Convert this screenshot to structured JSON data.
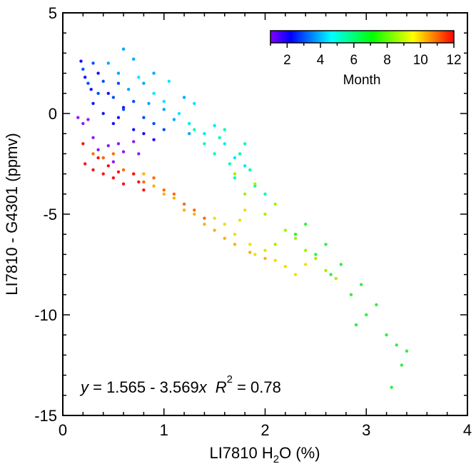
{
  "chart_data": {
    "type": "scatter",
    "xlabel": "LI7810 H₂O (%)",
    "xlabel_parts": {
      "main": "LI7810 H",
      "sub": "2",
      "rest": "O (%)"
    },
    "ylabel": "LI7810 - G4301 (ppmv)",
    "xlim": [
      0,
      4
    ],
    "ylim": [
      -15,
      5
    ],
    "x_ticks": [
      "0",
      "1",
      "2",
      "3",
      "4"
    ],
    "y_ticks": [
      "5",
      "0",
      "-5",
      "-10",
      "-15"
    ],
    "grid": false,
    "annotation": {
      "y": "y",
      "eq": " = 1.565 - 3.569",
      "x": "x",
      "r": "R",
      "sup": "2",
      "rval": " = 0.78"
    },
    "colorbar": {
      "label": "Month",
      "range": [
        1,
        12
      ],
      "tick_labels": [
        "2",
        "4",
        "6",
        "8",
        "10",
        "12"
      ],
      "placement": "top-right",
      "colormap": [
        "#8000ff",
        "#0000ff",
        "#0080ff",
        "#00ffff",
        "#00ff80",
        "#00ff00",
        "#80ff00",
        "#ffff00",
        "#ff8000",
        "#ff0000"
      ]
    },
    "series": [
      {
        "month": 1,
        "color": "#8a1cff",
        "points": [
          [
            0.15,
            -0.2
          ],
          [
            0.2,
            -0.5
          ],
          [
            0.25,
            -0.3
          ],
          [
            0.3,
            -1.2
          ],
          [
            0.35,
            -1.8
          ],
          [
            0.4,
            -2.2
          ],
          [
            0.45,
            -1.6
          ],
          [
            0.5,
            -2.4
          ],
          [
            0.55,
            -1.5
          ],
          [
            0.6,
            -1.9
          ],
          [
            0.7,
            -1.4
          ],
          [
            0.75,
            -2.0
          ]
        ]
      },
      {
        "month": 2,
        "color": "#1a10ff",
        "points": [
          [
            0.18,
            2.6
          ],
          [
            0.22,
            1.8
          ],
          [
            0.28,
            1.2
          ],
          [
            0.3,
            0.5
          ],
          [
            0.35,
            2.0
          ],
          [
            0.4,
            0.0
          ],
          [
            0.45,
            1.0
          ],
          [
            0.5,
            -0.5
          ],
          [
            0.6,
            0.3
          ],
          [
            0.7,
            -0.8
          ],
          [
            0.8,
            -1.0
          ],
          [
            0.9,
            -1.3
          ],
          [
            0.55,
            -0.2
          ]
        ]
      },
      {
        "month": 3,
        "color": "#0050ff",
        "points": [
          [
            0.2,
            2.2
          ],
          [
            0.25,
            1.5
          ],
          [
            0.3,
            2.5
          ],
          [
            0.35,
            1.0
          ],
          [
            0.4,
            1.6
          ],
          [
            0.5,
            0.8
          ],
          [
            0.55,
            1.5
          ],
          [
            0.6,
            0.2
          ],
          [
            0.7,
            0.6
          ],
          [
            0.8,
            -0.2
          ],
          [
            0.9,
            -0.5
          ],
          [
            1.0,
            -0.8
          ]
        ]
      },
      {
        "month": 4,
        "color": "#00a8ff",
        "points": [
          [
            0.45,
            2.5
          ],
          [
            0.55,
            2.0
          ],
          [
            0.6,
            3.2
          ],
          [
            0.65,
            1.2
          ],
          [
            0.7,
            2.7
          ],
          [
            0.8,
            1.5
          ],
          [
            0.85,
            0.5
          ],
          [
            0.9,
            2.0
          ],
          [
            1.0,
            0.2
          ],
          [
            1.1,
            -0.3
          ],
          [
            1.2,
            0.8
          ],
          [
            1.25,
            -1.0
          ]
        ]
      },
      {
        "month": 5,
        "color": "#00e8ff",
        "points": [
          [
            0.75,
            1.8
          ],
          [
            0.9,
            1.0
          ],
          [
            1.0,
            0.6
          ],
          [
            1.05,
            1.6
          ],
          [
            1.15,
            0.0
          ],
          [
            1.25,
            -0.5
          ],
          [
            1.3,
            0.5
          ],
          [
            1.4,
            -1.0
          ],
          [
            1.5,
            -0.6
          ],
          [
            1.6,
            -1.5
          ],
          [
            1.7,
            -2.2
          ],
          [
            1.8,
            -2.6
          ]
        ]
      },
      {
        "month": 6,
        "color": "#00ffb0",
        "points": [
          [
            1.3,
            -0.8
          ],
          [
            1.4,
            -1.5
          ],
          [
            1.5,
            -2.0
          ],
          [
            1.55,
            -1.2
          ],
          [
            1.65,
            -2.5
          ],
          [
            1.7,
            -3.2
          ],
          [
            1.75,
            -2.0
          ],
          [
            1.85,
            -2.8
          ],
          [
            1.9,
            -3.6
          ],
          [
            2.0,
            -4.0
          ],
          [
            1.6,
            -0.8
          ],
          [
            1.8,
            -1.5
          ]
        ]
      },
      {
        "month": 7,
        "color": "#30f040",
        "points": [
          [
            2.3,
            -6.0
          ],
          [
            2.4,
            -5.5
          ],
          [
            2.5,
            -7.0
          ],
          [
            2.6,
            -6.5
          ],
          [
            2.65,
            -8.0
          ],
          [
            2.75,
            -7.5
          ],
          [
            2.85,
            -9.0
          ],
          [
            2.95,
            -8.5
          ],
          [
            3.0,
            -10.0
          ],
          [
            3.1,
            -9.5
          ],
          [
            3.2,
            -11.0
          ],
          [
            3.3,
            -11.5
          ],
          [
            3.35,
            -12.5
          ],
          [
            3.4,
            -11.8
          ],
          [
            3.25,
            -13.6
          ],
          [
            2.9,
            -10.5
          ]
        ]
      },
      {
        "month": 8,
        "color": "#a8f000",
        "points": [
          [
            1.7,
            -3.0
          ],
          [
            1.8,
            -4.0
          ],
          [
            1.9,
            -3.5
          ],
          [
            2.0,
            -5.0
          ],
          [
            2.1,
            -4.5
          ],
          [
            2.2,
            -5.8
          ],
          [
            2.3,
            -6.2
          ],
          [
            2.4,
            -6.8
          ],
          [
            2.5,
            -7.2
          ],
          [
            2.6,
            -7.8
          ],
          [
            2.7,
            -8.2
          ],
          [
            2.1,
            -6.5
          ]
        ]
      },
      {
        "month": 9,
        "color": "#f0e000",
        "points": [
          [
            1.5,
            -5.2
          ],
          [
            1.6,
            -5.5
          ],
          [
            1.7,
            -6.0
          ],
          [
            1.75,
            -5.3
          ],
          [
            1.85,
            -6.5
          ],
          [
            1.9,
            -7.0
          ],
          [
            2.0,
            -6.8
          ],
          [
            2.1,
            -7.3
          ],
          [
            2.2,
            -7.6
          ],
          [
            2.3,
            -8.0
          ],
          [
            2.4,
            -7.5
          ],
          [
            1.8,
            -4.8
          ]
        ]
      },
      {
        "month": 10,
        "color": "#ffb000",
        "points": [
          [
            0.8,
            -3.0
          ],
          [
            0.9,
            -3.6
          ],
          [
            1.0,
            -4.0
          ],
          [
            1.1,
            -4.2
          ],
          [
            1.2,
            -4.8
          ],
          [
            1.3,
            -5.0
          ],
          [
            1.4,
            -5.5
          ],
          [
            1.5,
            -5.8
          ],
          [
            1.6,
            -6.2
          ],
          [
            1.7,
            -6.5
          ],
          [
            1.85,
            -6.9
          ],
          [
            2.0,
            -7.2
          ]
        ]
      },
      {
        "month": 11,
        "color": "#ff6a00",
        "points": [
          [
            0.3,
            -2.0
          ],
          [
            0.4,
            -2.2
          ],
          [
            0.5,
            -2.0
          ],
          [
            0.6,
            -2.8
          ],
          [
            0.7,
            -3.0
          ],
          [
            0.8,
            -3.4
          ],
          [
            0.9,
            -3.2
          ],
          [
            1.0,
            -3.8
          ],
          [
            1.1,
            -4.0
          ],
          [
            1.2,
            -4.5
          ],
          [
            1.3,
            -4.8
          ],
          [
            1.4,
            -5.2
          ]
        ]
      },
      {
        "month": 12,
        "color": "#ff1010",
        "points": [
          [
            0.2,
            -1.5
          ],
          [
            0.22,
            -2.5
          ],
          [
            0.3,
            -2.8
          ],
          [
            0.35,
            -2.2
          ],
          [
            0.4,
            -3.0
          ],
          [
            0.45,
            -2.6
          ],
          [
            0.5,
            -3.2
          ],
          [
            0.55,
            -2.9
          ],
          [
            0.6,
            -3.5
          ],
          [
            0.7,
            -3.0
          ],
          [
            0.75,
            -3.4
          ],
          [
            0.8,
            -3.8
          ]
        ]
      }
    ]
  }
}
